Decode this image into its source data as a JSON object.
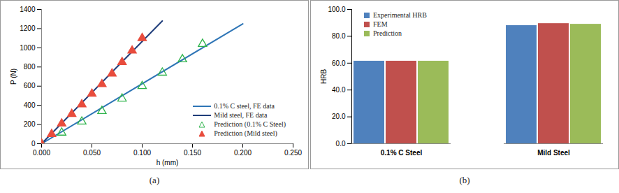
{
  "chart_data": [
    {
      "type": "line",
      "caption": "(a)",
      "x_label": "h (mm)",
      "y_label": "P (N)",
      "xlim": [
        0,
        0.25
      ],
      "xticks": [
        {
          "value": 0,
          "label": "0.000"
        },
        {
          "value": 0.05,
          "label": "0.050"
        },
        {
          "value": 0.1,
          "label": "0.100"
        },
        {
          "value": 0.15,
          "label": "0.150"
        },
        {
          "value": 0.2,
          "label": "0.200"
        },
        {
          "value": 0.25,
          "label": "0.250"
        }
      ],
      "ylim": [
        0,
        1400
      ],
      "yticks": [
        0,
        200,
        400,
        600,
        800,
        1000,
        1200,
        1400
      ],
      "grid": false,
      "legend": "bottom-right",
      "series": [
        {
          "name": "0.1% C steel, FE data",
          "type": "line",
          "line_style": "solid",
          "color": "#2e75b6",
          "x": [
            0,
            0.2
          ],
          "values": [
            0,
            1250
          ]
        },
        {
          "name": "Mild steel, FE data",
          "type": "line",
          "line_style": "solid",
          "color": "#1f3d7a",
          "x": [
            0,
            0.12
          ],
          "values": [
            0,
            1280
          ]
        },
        {
          "name": "Prediction (0.1% C Steel)",
          "type": "scatter",
          "marker": "triangle-open",
          "color": "#2db34a",
          "x": [
            0,
            0.02,
            0.04,
            0.06,
            0.08,
            0.1,
            0.12,
            0.14,
            0.16
          ],
          "values": [
            0,
            115,
            230,
            340,
            470,
            600,
            740,
            880,
            1040
          ]
        },
        {
          "name": "Prediction (Mild steel)",
          "type": "scatter",
          "marker": "triangle",
          "color": "#e84c3d",
          "x": [
            0,
            0.01,
            0.02,
            0.03,
            0.04,
            0.05,
            0.06,
            0.07,
            0.08,
            0.09,
            0.1
          ],
          "values": [
            0,
            100,
            210,
            310,
            410,
            520,
            620,
            730,
            850,
            970,
            1100
          ]
        }
      ]
    },
    {
      "type": "bar",
      "caption": "(b)",
      "y_label": "HRB",
      "categories": [
        "0.1% C Steel",
        "Mild Steel"
      ],
      "ylim": [
        0,
        100
      ],
      "yticks": [
        {
          "value": 0,
          "label": "0.0"
        },
        {
          "value": 20,
          "label": "20.0"
        },
        {
          "value": 40,
          "label": "40.0"
        },
        {
          "value": 60,
          "label": "60.0"
        },
        {
          "value": 80,
          "label": "80.0"
        },
        {
          "value": 100,
          "label": "100.0"
        }
      ],
      "grid": false,
      "legend": "top-left",
      "series": [
        {
          "name": "Experimental HRB",
          "color": "#4f81bd",
          "values": [
            61.5,
            88
          ]
        },
        {
          "name": "FEM",
          "color": "#c0504d",
          "values": [
            61.5,
            89.5
          ]
        },
        {
          "name": "Prediction",
          "color": "#9bbb59",
          "values": [
            61.5,
            89
          ]
        }
      ]
    }
  ]
}
